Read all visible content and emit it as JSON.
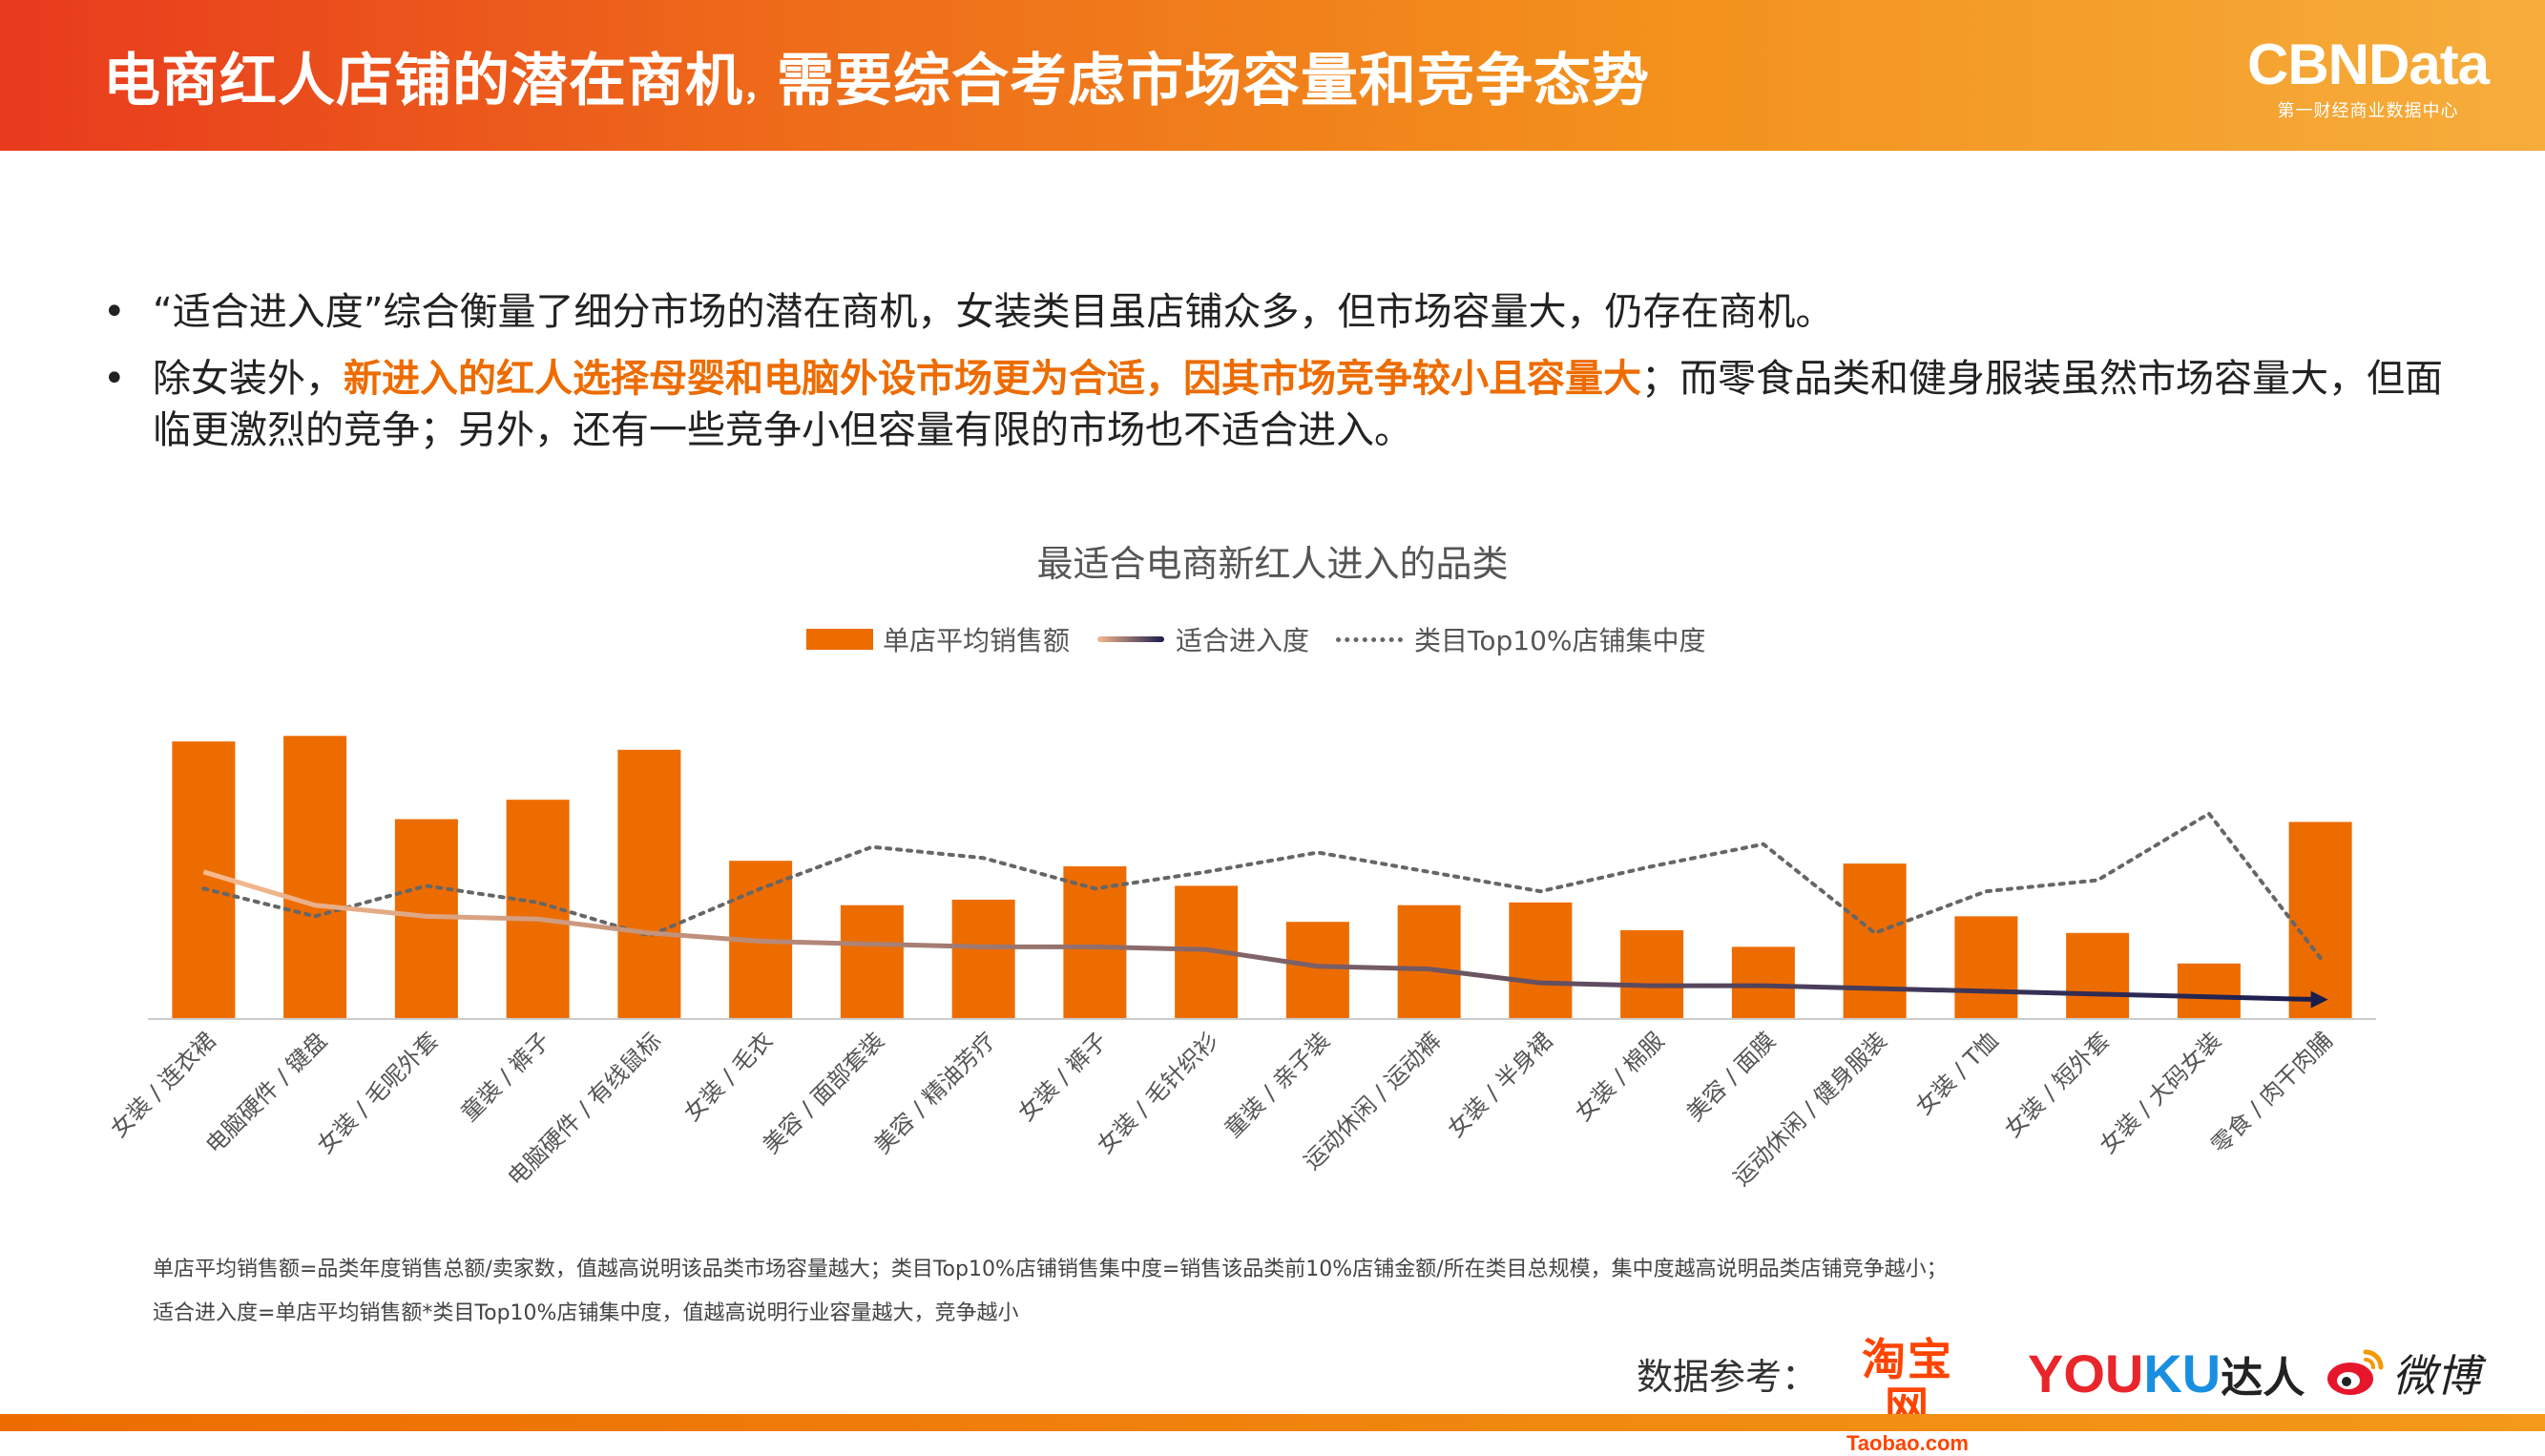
{
  "header": {
    "title_part1": "电商红人店铺的潜在商机",
    "title_sep": "，",
    "title_part2": "需要综合考虑市场容量和竞争态势",
    "logo_main": "CBNData",
    "logo_sub": "第一财经商业数据中心"
  },
  "bullets": [
    {
      "marker": "•",
      "text": "“适合进入度”综合衡量了细分市场的潜在商机，女装类目虽店铺众多，但市场容量大，仍存在商机。"
    },
    {
      "marker": "•",
      "pre": "除女装外，",
      "highlight": "新进入的红人选择母婴和电脑外设市场更为合适，因其市场竞争较小且容量大",
      "post": "；而零食品类和健身服装虽然市场容量大，但面临更激烈的竞争；另外，还有一些竞争小但容量有限的市场也不适合进入。"
    }
  ],
  "chart_data": {
    "type": "bar",
    "title": "最适合电商新红人进入的品类",
    "legend": [
      "单店平均销售额",
      "适合进入度",
      "类目Top10%店铺集中度"
    ],
    "legend_position": "top-center",
    "categories": [
      "女装 / 连衣裙",
      "电脑硬件 / 键盘",
      "女装 / 毛呢外套",
      "童装 / 裤子",
      "电脑硬件 / 有线鼠标",
      "女装 / 毛衣",
      "美容 / 面部套装",
      "美容 / 精油芳疗",
      "女装 / 裤子",
      "女装 / 毛针织衫",
      "童装 / 亲子装",
      "运动休闲 / 运动裤",
      "女装 / 半身裙",
      "女装 / 棉服",
      "美容 / 面膜",
      "运动休闲 / 健身服装",
      "女装 / T恤",
      "女装 / 短外套",
      "女装 / 大码女装",
      "零食 / 肉干肉脯"
    ],
    "series": [
      {
        "name": "单店平均销售额",
        "type": "bar",
        "values": [
          100,
          102,
          72,
          79,
          97,
          57,
          41,
          43,
          55,
          48,
          35,
          41,
          42,
          32,
          26,
          56,
          37,
          31,
          20,
          71
        ]
      },
      {
        "name": "适合进入度",
        "type": "line",
        "values": [
          53,
          41,
          37,
          36,
          31,
          28,
          27,
          26,
          26,
          25,
          19,
          18,
          13,
          12,
          12,
          11,
          10,
          9,
          8,
          7
        ]
      },
      {
        "name": "类目Top10%店铺集中度",
        "type": "line-dotted",
        "values": [
          47,
          37,
          48,
          42,
          30,
          47,
          62,
          58,
          47,
          53,
          60,
          53,
          46,
          55,
          63,
          31,
          46,
          50,
          74,
          22
        ]
      }
    ],
    "ylim": [
      0,
      110
    ],
    "grid": false,
    "colors": {
      "bar": "#ed6c00",
      "line_start": "#f7b98d",
      "line_end": "#1a1d4e",
      "dotted": "#666666"
    }
  },
  "notes": [
    "单店平均销售额=品类年度销售总额/卖家数，值越高说明该品类市场容量越大；类目Top10%店铺销售集中度=销售该品类前10%店铺金额/所在类目总规模，集中度越高说明品类店铺竞争越小；",
    "适合进入度=单店平均销售额*类目Top10%店铺集中度，值越高说明行业容量越大，竞争越小"
  ],
  "sources": {
    "label": "数据参考：",
    "taobao_cn": "淘宝网",
    "taobao_en": "Taobao.com",
    "youku_you": "YOU",
    "youku_ku": "KU",
    "youku_daren": "达人",
    "weibo": "微博"
  }
}
